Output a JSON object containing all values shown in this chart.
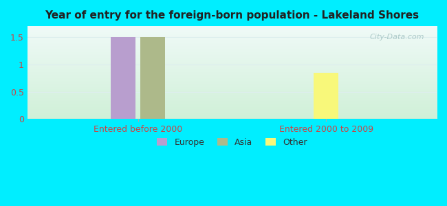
{
  "title": "Year of entry for the foreign-born population - Lakeland Shores",
  "groups": [
    "Entered before 2000",
    "Entered 2000 to 2009"
  ],
  "series": [
    {
      "name": "Europe",
      "color": "#b89ece",
      "values": [
        1.5,
        0
      ]
    },
    {
      "name": "Asia",
      "color": "#adb98a",
      "values": [
        1.5,
        0
      ]
    },
    {
      "name": "Other",
      "color": "#f8f87a",
      "values": [
        0,
        0.85
      ]
    }
  ],
  "ylim": [
    0,
    1.7
  ],
  "yticks": [
    0,
    0.5,
    1,
    1.5
  ],
  "background_color": "#00eeff",
  "plot_bg_top": "#f0faf8",
  "plot_bg_bottom": "#d0f0d8",
  "title_color": "#222222",
  "tick_label_color": "#cc4444",
  "bar_width": 0.06,
  "group_centers": [
    0.27,
    0.73
  ],
  "figsize": [
    6.5,
    3.0
  ],
  "dpi": 100
}
